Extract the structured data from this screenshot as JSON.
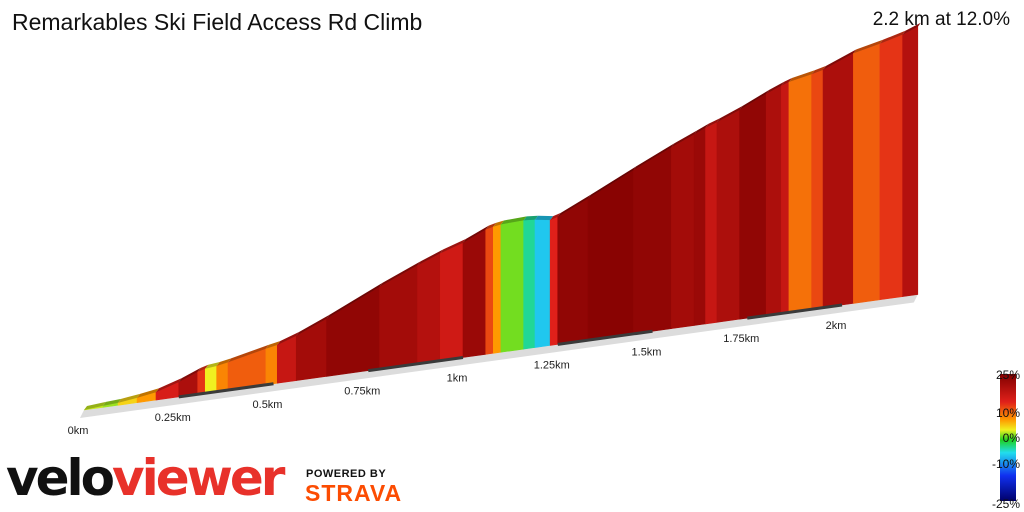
{
  "chart_data": {
    "type": "area",
    "title": "Remarkables Ski Field Access Rd Climb",
    "summary": "2.2 km at 12.0%",
    "xlim": [
      0,
      2.2
    ],
    "x_ticks": [
      {
        "value": 0,
        "label": "0km"
      },
      {
        "value": 0.25,
        "label": "0.25km"
      },
      {
        "value": 0.5,
        "label": "0.5km"
      },
      {
        "value": 0.75,
        "label": "0.75km"
      },
      {
        "value": 1.0,
        "label": "1km"
      },
      {
        "value": 1.25,
        "label": "1.25km"
      },
      {
        "value": 1.5,
        "label": "1.5km"
      },
      {
        "value": 1.75,
        "label": "1.75km"
      },
      {
        "value": 2.0,
        "label": "2km"
      }
    ],
    "gradient_scale": [
      {
        "value": 25,
        "label": "25%"
      },
      {
        "value": 10,
        "label": "10%"
      },
      {
        "value": 0,
        "label": "0%"
      },
      {
        "value": -10,
        "label": "-10%"
      },
      {
        "value": -25,
        "label": "-25%"
      }
    ],
    "segments": [
      {
        "d": 0.0,
        "g": 4
      },
      {
        "d": 0.05,
        "g": 3
      },
      {
        "d": 0.09,
        "g": 6
      },
      {
        "d": 0.14,
        "g": 8
      },
      {
        "d": 0.19,
        "g": 15
      },
      {
        "d": 0.25,
        "g": 20
      },
      {
        "d": 0.3,
        "g": 13
      },
      {
        "d": 0.32,
        "g": 5
      },
      {
        "d": 0.35,
        "g": 9
      },
      {
        "d": 0.38,
        "g": 11
      },
      {
        "d": 0.48,
        "g": 9
      },
      {
        "d": 0.51,
        "g": 17
      },
      {
        "d": 0.56,
        "g": 21
      },
      {
        "d": 0.64,
        "g": 23
      },
      {
        "d": 0.78,
        "g": 21
      },
      {
        "d": 0.88,
        "g": 19
      },
      {
        "d": 0.94,
        "g": 16
      },
      {
        "d": 1.0,
        "g": 22
      },
      {
        "d": 1.06,
        "g": 12
      },
      {
        "d": 1.08,
        "g": 8
      },
      {
        "d": 1.1,
        "g": 2
      },
      {
        "d": 1.16,
        "g": -4
      },
      {
        "d": 1.19,
        "g": -8
      },
      {
        "d": 1.23,
        "g": 14
      },
      {
        "d": 1.25,
        "g": 23
      },
      {
        "d": 1.33,
        "g": 24
      },
      {
        "d": 1.45,
        "g": 23
      },
      {
        "d": 1.55,
        "g": 21
      },
      {
        "d": 1.61,
        "g": 22
      },
      {
        "d": 1.64,
        "g": 17
      },
      {
        "d": 1.67,
        "g": 20
      },
      {
        "d": 1.73,
        "g": 23
      },
      {
        "d": 1.8,
        "g": 20
      },
      {
        "d": 1.84,
        "g": 17
      },
      {
        "d": 1.86,
        "g": 10
      },
      {
        "d": 1.92,
        "g": 12
      },
      {
        "d": 1.95,
        "g": 20
      },
      {
        "d": 2.03,
        "g": 11
      },
      {
        "d": 2.1,
        "g": 13
      },
      {
        "d": 2.16,
        "g": 19
      }
    ],
    "end_distance": 2.2
  },
  "legend": {
    "colors": [
      {
        "stop": 0.0,
        "color": "#800000"
      },
      {
        "stop": 0.22,
        "color": "#e0201a"
      },
      {
        "stop": 0.36,
        "color": "#ff9900"
      },
      {
        "stop": 0.44,
        "color": "#f0f020"
      },
      {
        "stop": 0.52,
        "color": "#20d020"
      },
      {
        "stop": 0.62,
        "color": "#22ddee"
      },
      {
        "stop": 0.8,
        "color": "#1030f0"
      },
      {
        "stop": 1.0,
        "color": "#00006a"
      }
    ]
  },
  "branding": {
    "velo": "velo",
    "viewer": "viewer",
    "powered_by": "POWERED BY",
    "strava": "STRAVA"
  }
}
